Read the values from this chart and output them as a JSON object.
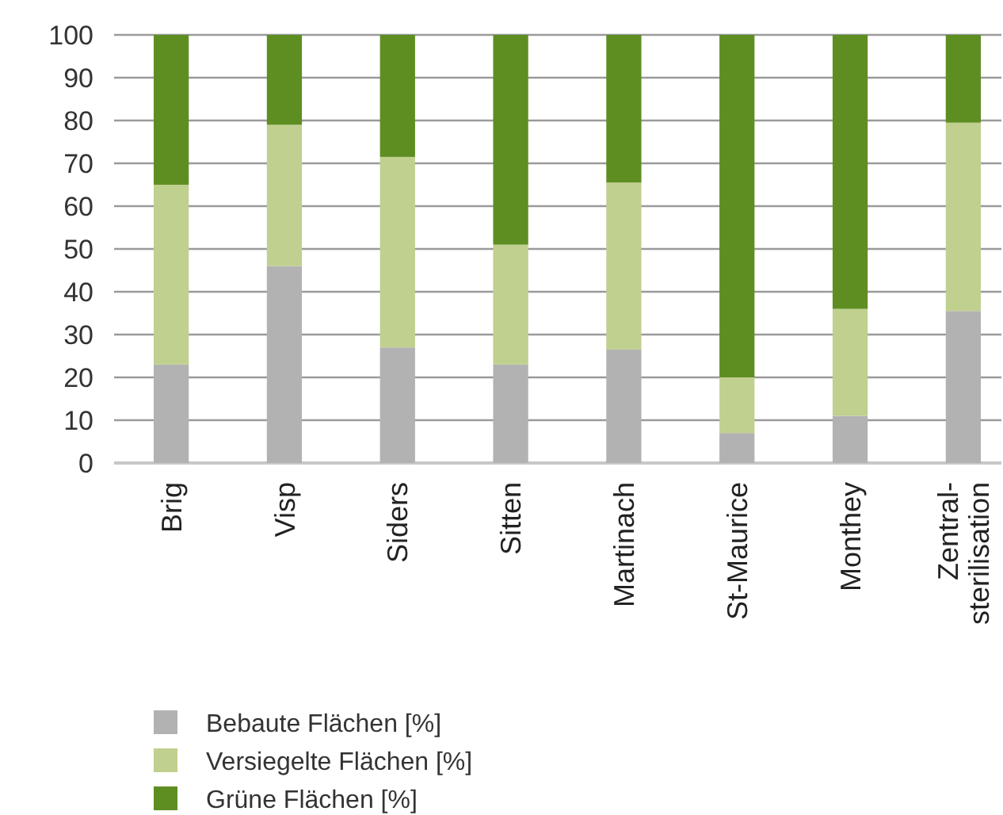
{
  "chart_data": {
    "type": "bar",
    "stacked": true,
    "categories": [
      "Brig",
      "Visp",
      "Siders",
      "Sitten",
      "Martinach",
      "St-Maurice",
      "Monthey",
      "Zentral-\nsterilisation"
    ],
    "series": [
      {
        "name": "Bebaute Flächen [%]",
        "color": "#b2b2b2",
        "values": [
          23,
          46,
          27,
          23,
          26.5,
          7,
          11,
          35.5
        ]
      },
      {
        "name": "Versiegelte Flächen [%]",
        "color": "#c0d08f",
        "values": [
          42,
          33,
          44.5,
          28,
          39,
          13,
          25,
          44
        ]
      },
      {
        "name": "Grüne Flächen [%]",
        "color": "#5e8e22",
        "values": [
          35,
          21,
          28.5,
          49,
          34.5,
          80,
          64,
          20.5
        ]
      }
    ],
    "ylim": [
      0,
      100
    ],
    "yticks": [
      0,
      10,
      20,
      30,
      40,
      50,
      60,
      70,
      80,
      90,
      100
    ],
    "grid": "y",
    "legend": "bottom left"
  }
}
